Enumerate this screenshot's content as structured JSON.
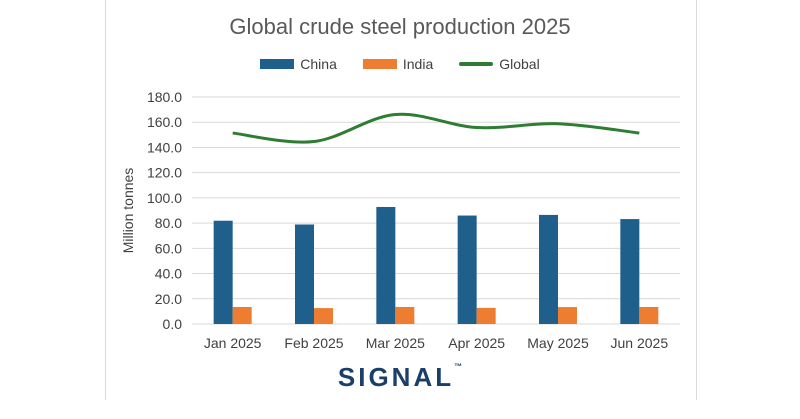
{
  "chart_data": {
    "type": "bar",
    "title": "Global crude steel production 2025",
    "ylabel": "Million tonnes",
    "xlabel": "",
    "categories": [
      "Jan 2025",
      "Feb 2025",
      "Mar 2025",
      "Apr 2025",
      "May 2025",
      "Jun 2025"
    ],
    "series": [
      {
        "name": "China",
        "type": "bar",
        "color": "#1f5f8b",
        "values": [
          81.9,
          78.9,
          92.8,
          86.0,
          86.5,
          83.2
        ]
      },
      {
        "name": "India",
        "type": "bar",
        "color": "#ed7d31",
        "values": [
          13.5,
          12.6,
          13.5,
          12.8,
          13.4,
          13.5
        ]
      },
      {
        "name": "Global",
        "type": "line",
        "color": "#2e7d32",
        "values": [
          151.4,
          144.7,
          166.1,
          155.8,
          158.8,
          151.4
        ]
      }
    ],
    "ylim": [
      0,
      180
    ],
    "yticks": [
      "0.0",
      "20.0",
      "40.0",
      "60.0",
      "80.0",
      "100.0",
      "120.0",
      "140.0",
      "160.0",
      "180.0"
    ],
    "grid": true,
    "legend_position": "top"
  },
  "logo": {
    "text": "SIGNAL",
    "tm": "™"
  }
}
